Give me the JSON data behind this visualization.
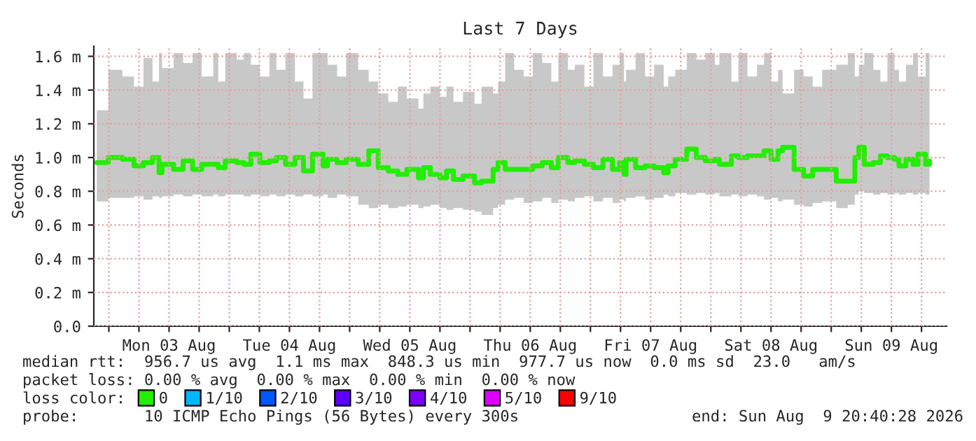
{
  "chart_data": {
    "type": "step",
    "title": "Last 7 Days",
    "ylabel": "Seconds",
    "xlim": [
      "2026-08-02T21:00",
      "2026-08-09T23:00"
    ],
    "xticks": [
      {
        "value": "2026-08-03T00:00",
        "label": null
      },
      {
        "value": "2026-08-03T06:00",
        "label": null
      },
      {
        "value": "2026-08-03T12:00",
        "label": "Mon 03 Aug"
      },
      {
        "value": "2026-08-03T18:00",
        "label": null
      },
      {
        "value": "2026-08-04T00:00",
        "label": null
      },
      {
        "value": "2026-08-04T06:00",
        "label": null
      },
      {
        "value": "2026-08-04T12:00",
        "label": "Tue 04 Aug"
      },
      {
        "value": "2026-08-04T18:00",
        "label": null
      },
      {
        "value": "2026-08-05T00:00",
        "label": null
      },
      {
        "value": "2026-08-05T06:00",
        "label": null
      },
      {
        "value": "2026-08-05T12:00",
        "label": "Wed 05 Aug"
      },
      {
        "value": "2026-08-05T18:00",
        "label": null
      },
      {
        "value": "2026-08-06T00:00",
        "label": null
      },
      {
        "value": "2026-08-06T06:00",
        "label": null
      },
      {
        "value": "2026-08-06T12:00",
        "label": "Thu 06 Aug"
      },
      {
        "value": "2026-08-06T18:00",
        "label": null
      },
      {
        "value": "2026-08-07T00:00",
        "label": null
      },
      {
        "value": "2026-08-07T06:00",
        "label": null
      },
      {
        "value": "2026-08-07T12:00",
        "label": "Fri 07 Aug"
      },
      {
        "value": "2026-08-07T18:00",
        "label": null
      },
      {
        "value": "2026-08-08T00:00",
        "label": null
      },
      {
        "value": "2026-08-08T06:00",
        "label": null
      },
      {
        "value": "2026-08-08T12:00",
        "label": "Sat 08 Aug"
      },
      {
        "value": "2026-08-08T18:00",
        "label": null
      },
      {
        "value": "2026-08-09T00:00",
        "label": null
      },
      {
        "value": "2026-08-09T06:00",
        "label": null
      },
      {
        "value": "2026-08-09T12:00",
        "label": "Sun 09 Aug"
      },
      {
        "value": "2026-08-09T18:00",
        "label": null
      }
    ],
    "ylim": [
      0,
      1.66
    ],
    "yticks": [
      {
        "value": 0,
        "label": "0.0"
      },
      {
        "value": 0.2,
        "label": "0.2 m"
      },
      {
        "value": 0.4,
        "label": "0.4 m"
      },
      {
        "value": 0.6,
        "label": "0.6 m"
      },
      {
        "value": 0.8,
        "label": "0.8 m"
      },
      {
        "value": 1.0,
        "label": "1.0 m"
      },
      {
        "value": 1.2,
        "label": "1.2 m"
      },
      {
        "value": 1.4,
        "label": "1.4 m"
      },
      {
        "value": 1.6,
        "label": "1.6 m"
      }
    ],
    "grid": true,
    "legend": "bottom",
    "series": [
      {
        "name": "0",
        "color": "#22ee00",
        "x": [
          "2026-08-02T21:36",
          "2026-08-02T23:54",
          "2026-08-03T02:42",
          "2026-08-03T05:00",
          "2026-08-03T06:54",
          "2026-08-03T08:42",
          "2026-08-03T10:00",
          "2026-08-03T10:36",
          "2026-08-03T12:54",
          "2026-08-03T14:48",
          "2026-08-03T16:42",
          "2026-08-03T18:30",
          "2026-08-03T20:48",
          "2026-08-03T21:48",
          "2026-08-03T23:12",
          "2026-08-04T01:30",
          "2026-08-04T02:54",
          "2026-08-04T04:18",
          "2026-08-04T06:06",
          "2026-08-04T08:00",
          "2026-08-04T09:24",
          "2026-08-04T11:12",
          "2026-08-04T13:06",
          "2026-08-04T14:48",
          "2026-08-04T16:36",
          "2026-08-04T18:42",
          "2026-08-04T19:36",
          "2026-08-04T21:30",
          "2026-08-04T23:18",
          "2026-08-05T01:42",
          "2026-08-05T03:48",
          "2026-08-05T05:42",
          "2026-08-05T07:42",
          "2026-08-05T09:36",
          "2026-08-05T11:24",
          "2026-08-05T13:42",
          "2026-08-05T14:42",
          "2026-08-05T16:06",
          "2026-08-05T18:00",
          "2026-08-05T19:18",
          "2026-08-05T20:42",
          "2026-08-05T22:36",
          "2026-08-06T00:54",
          "2026-08-06T02:18",
          "2026-08-06T04:36",
          "2026-08-06T05:36",
          "2026-08-06T07:00",
          "2026-08-06T08:48",
          "2026-08-06T10:42",
          "2026-08-06T12:30",
          "2026-08-06T14:24",
          "2026-08-06T16:12",
          "2026-08-06T17:36",
          "2026-08-06T19:30",
          "2026-08-06T20:54",
          "2026-08-06T22:48",
          "2026-08-07T00:36",
          "2026-08-07T02:30",
          "2026-08-07T04:24",
          "2026-08-07T05:48",
          "2026-08-07T06:42",
          "2026-08-07T07:06",
          "2026-08-07T09:00",
          "2026-08-07T10:54",
          "2026-08-07T12:42",
          "2026-08-07T14:36",
          "2026-08-07T15:30",
          "2026-08-07T16:54",
          "2026-08-07T19:12",
          "2026-08-07T21:06",
          "2026-08-07T22:54",
          "2026-08-08T00:48",
          "2026-08-08T01:42",
          "2026-08-08T04:06",
          "2026-08-08T05:30",
          "2026-08-08T07:18",
          "2026-08-08T09:12",
          "2026-08-08T10:36",
          "2026-08-08T12:00",
          "2026-08-08T13:24",
          "2026-08-08T14:18",
          "2026-08-08T16:36",
          "2026-08-08T18:30",
          "2026-08-08T20:18",
          "2026-08-08T22:12",
          "2026-08-09T01:00",
          "2026-08-09T03:18",
          "2026-08-09T04:42",
          "2026-08-09T05:30",
          "2026-08-09T06:36",
          "2026-08-09T08:24",
          "2026-08-09T09:48",
          "2026-08-09T11:12",
          "2026-08-09T12:36",
          "2026-08-09T13:30",
          "2026-08-09T14:54",
          "2026-08-09T16:18",
          "2026-08-09T17:18",
          "2026-08-09T18:48",
          "2026-08-09T19:36"
        ],
        "values": [
          0.97,
          1.0,
          0.99,
          0.95,
          0.97,
          1.0,
          0.91,
          0.96,
          0.93,
          0.98,
          0.93,
          0.96,
          0.96,
          0.94,
          0.98,
          0.97,
          0.96,
          1.02,
          0.97,
          0.98,
          1.0,
          0.96,
          1.0,
          0.92,
          1.02,
          0.95,
          0.99,
          0.97,
          0.99,
          0.96,
          1.04,
          0.94,
          0.92,
          0.9,
          0.93,
          0.88,
          0.94,
          0.9,
          0.88,
          0.92,
          0.87,
          0.89,
          0.85,
          0.86,
          0.93,
          0.97,
          0.93,
          0.93,
          0.93,
          0.95,
          0.97,
          0.94,
          1.0,
          0.97,
          0.98,
          0.96,
          0.94,
          0.99,
          0.93,
          0.97,
          0.9,
          0.99,
          0.94,
          0.95,
          0.94,
          0.91,
          0.95,
          0.99,
          1.05,
          1.0,
          0.98,
          0.99,
          0.96,
          1.01,
          1.0,
          1.01,
          1.01,
          1.04,
          0.99,
          1.04,
          1.06,
          0.93,
          0.89,
          0.93,
          0.93,
          0.86,
          0.86,
          1.0,
          1.06,
          0.96,
          0.97,
          1.01,
          1.0,
          0.99,
          0.95,
          0.99,
          0.96,
          1.02,
          0.96,
          0.98
        ],
        "lower": [
          0.74,
          0.76,
          0.76,
          0.77,
          0.75,
          0.77,
          0.76,
          0.77,
          0.78,
          0.77,
          0.78,
          0.77,
          0.78,
          0.77,
          0.78,
          0.78,
          0.77,
          0.78,
          0.77,
          0.78,
          0.77,
          0.78,
          0.77,
          0.78,
          0.77,
          0.78,
          0.76,
          0.78,
          0.77,
          0.72,
          0.7,
          0.72,
          0.7,
          0.71,
          0.72,
          0.7,
          0.71,
          0.72,
          0.7,
          0.69,
          0.7,
          0.69,
          0.68,
          0.66,
          0.7,
          0.72,
          0.75,
          0.76,
          0.73,
          0.74,
          0.76,
          0.73,
          0.75,
          0.74,
          0.76,
          0.77,
          0.74,
          0.76,
          0.73,
          0.75,
          0.74,
          0.76,
          0.77,
          0.75,
          0.76,
          0.78,
          0.77,
          0.79,
          0.78,
          0.79,
          0.78,
          0.79,
          0.77,
          0.78,
          0.77,
          0.78,
          0.77,
          0.75,
          0.76,
          0.74,
          0.75,
          0.72,
          0.71,
          0.73,
          0.74,
          0.7,
          0.72,
          0.78,
          0.8,
          0.79,
          0.78,
          0.79,
          0.78,
          0.79,
          0.78,
          0.79,
          0.78,
          0.79,
          0.78,
          0.79
        ],
        "upper": [
          1.28,
          1.52,
          1.48,
          1.42,
          1.59,
          1.45,
          1.62,
          1.53,
          1.62,
          1.56,
          1.62,
          1.48,
          1.62,
          1.45,
          1.62,
          1.58,
          1.62,
          1.55,
          1.48,
          1.62,
          1.52,
          1.62,
          1.45,
          1.35,
          1.62,
          1.62,
          1.55,
          1.48,
          1.62,
          1.52,
          1.45,
          1.38,
          1.33,
          1.42,
          1.35,
          1.29,
          1.38,
          1.42,
          1.36,
          1.42,
          1.33,
          1.39,
          1.32,
          1.42,
          1.38,
          1.45,
          1.62,
          1.52,
          1.48,
          1.62,
          1.56,
          1.45,
          1.62,
          1.52,
          1.55,
          1.42,
          1.62,
          1.48,
          1.55,
          1.62,
          1.45,
          1.52,
          1.62,
          1.48,
          1.55,
          1.42,
          1.48,
          1.52,
          1.62,
          1.58,
          1.62,
          1.55,
          1.62,
          1.45,
          1.62,
          1.48,
          1.55,
          1.62,
          1.45,
          1.52,
          1.38,
          1.52,
          1.48,
          1.42,
          1.52,
          1.55,
          1.62,
          1.48,
          1.55,
          1.62,
          1.52,
          1.45,
          1.62,
          1.52,
          1.45,
          1.55,
          1.62,
          1.48,
          1.62,
          1.55
        ]
      },
      {
        "name": "1/10",
        "color": "#00b8ff"
      },
      {
        "name": "2/10",
        "color": "#0059ff"
      },
      {
        "name": "3/10",
        "color": "#5e00ff"
      },
      {
        "name": "4/10",
        "color": "#7e00ff"
      },
      {
        "name": "5/10",
        "color": "#dd00ff"
      },
      {
        "name": "9/10",
        "color": "#ff0000"
      }
    ],
    "annotations": [
      "median rtt:  956.7 us avg  1.1 ms max  848.3 us min  977.7 us now  0.0 ms sd  23.0   am/s",
      "packet loss: 0.00 % avg  0.00 % max  0.00 % min  0.00 % now",
      "loss color:",
      "probe:       10 ICMP Echo Pings (56 Bytes) every 300s",
      "end: Sun Aug  9 20:40:28 2026"
    ]
  }
}
